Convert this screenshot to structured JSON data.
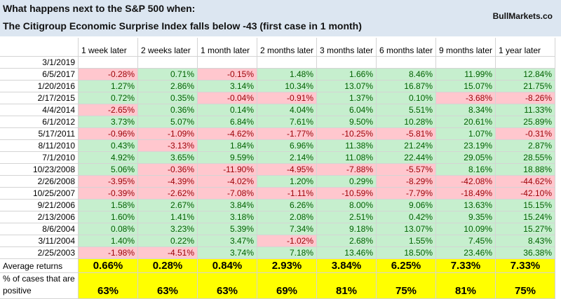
{
  "header": {
    "title_line1": "What happens next to the S&P 500 when:",
    "title_line2": "The Citigroup Economic Surprise Index falls below -43 (first case in 1 month)",
    "site": "BullMarkets.co"
  },
  "table": {
    "columns": [
      "1 week later",
      "2 weeks later",
      "1 month later",
      "2 months later",
      "3 months later",
      "6 months later",
      "9 months later",
      "1 year later"
    ],
    "rows": [
      [
        "3/1/2019"
      ],
      [
        "6/5/2017",
        "-0.28%",
        "0.71%",
        "-0.15%",
        "1.48%",
        "1.66%",
        "8.46%",
        "11.99%",
        "12.84%"
      ],
      [
        "1/20/2016",
        "1.27%",
        "2.86%",
        "3.14%",
        "10.34%",
        "13.07%",
        "16.87%",
        "15.07%",
        "21.75%"
      ],
      [
        "2/17/2015",
        "0.72%",
        "0.35%",
        "-0.04%",
        "-0.91%",
        "1.37%",
        "0.10%",
        "-3.68%",
        "-8.26%"
      ],
      [
        "4/4/2014",
        "-2.65%",
        "0.36%",
        "0.14%",
        "4.04%",
        "6.04%",
        "5.51%",
        "8.34%",
        "11.33%"
      ],
      [
        "6/1/2012",
        "3.73%",
        "5.07%",
        "6.84%",
        "7.61%",
        "9.50%",
        "10.28%",
        "20.61%",
        "25.89%"
      ],
      [
        "5/17/2011",
        "-0.96%",
        "-1.09%",
        "-4.62%",
        "-1.77%",
        "-10.25%",
        "-5.81%",
        "1.07%",
        "-0.31%"
      ],
      [
        "8/11/2010",
        "0.43%",
        "-3.13%",
        "1.84%",
        "6.96%",
        "11.38%",
        "21.24%",
        "23.19%",
        "2.87%"
      ],
      [
        "7/1/2010",
        "4.92%",
        "3.65%",
        "9.59%",
        "2.14%",
        "11.08%",
        "22.44%",
        "29.05%",
        "28.55%"
      ],
      [
        "10/23/2008",
        "5.06%",
        "-0.36%",
        "-11.90%",
        "-4.95%",
        "-7.88%",
        "-5.57%",
        "8.16%",
        "18.88%"
      ],
      [
        "2/26/2008",
        "-3.95%",
        "-4.39%",
        "-4.02%",
        "1.20%",
        "0.29%",
        "-8.29%",
        "-42.08%",
        "-44.62%"
      ],
      [
        "10/25/2007",
        "-0.39%",
        "-2.62%",
        "-7.08%",
        "-1.11%",
        "-10.59%",
        "-7.79%",
        "-18.49%",
        "-42.10%"
      ],
      [
        "9/21/2006",
        "1.58%",
        "2.67%",
        "3.84%",
        "6.26%",
        "8.00%",
        "9.06%",
        "13.63%",
        "15.15%"
      ],
      [
        "2/13/2006",
        "1.60%",
        "1.41%",
        "3.18%",
        "2.08%",
        "2.51%",
        "0.42%",
        "9.35%",
        "15.24%"
      ],
      [
        "8/6/2004",
        "0.08%",
        "3.23%",
        "5.39%",
        "7.34%",
        "9.18%",
        "13.07%",
        "10.09%",
        "15.27%"
      ],
      [
        "3/11/2004",
        "1.40%",
        "0.22%",
        "3.47%",
        "-1.02%",
        "2.68%",
        "1.55%",
        "7.45%",
        "8.43%"
      ],
      [
        "2/25/2003",
        "-1.98%",
        "-4.51%",
        "3.74%",
        "7.18%",
        "13.46%",
        "18.50%",
        "23.46%",
        "36.38%"
      ]
    ],
    "average": {
      "label": "Average returns",
      "values": [
        "0.66%",
        "0.28%",
        "0.84%",
        "2.93%",
        "3.84%",
        "6.25%",
        "7.33%",
        "7.33%"
      ]
    },
    "positive": {
      "label_line1": "% of cases that are",
      "label_line2": "positive",
      "values": [
        "63%",
        "63%",
        "63%",
        "69%",
        "81%",
        "75%",
        "81%",
        "75%"
      ]
    }
  }
}
